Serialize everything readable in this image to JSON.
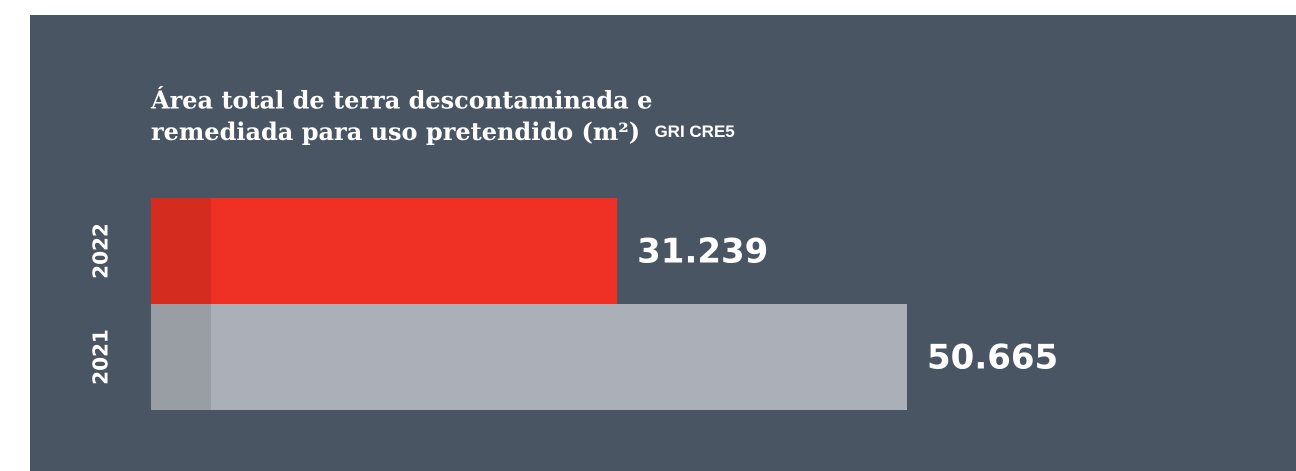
{
  "chart_data": {
    "type": "bar",
    "orientation": "horizontal",
    "title_lines": [
      "Área total de terra descontaminada e",
      "remediada para uso pretendido (m²)"
    ],
    "title_tag": "GRI CRE5",
    "categories": [
      "2022",
      "2021"
    ],
    "values": [
      31239,
      50665
    ],
    "value_labels": [
      "31.239",
      "50.665"
    ],
    "colors": [
      "#ee3124",
      "#abb0b8"
    ]
  }
}
